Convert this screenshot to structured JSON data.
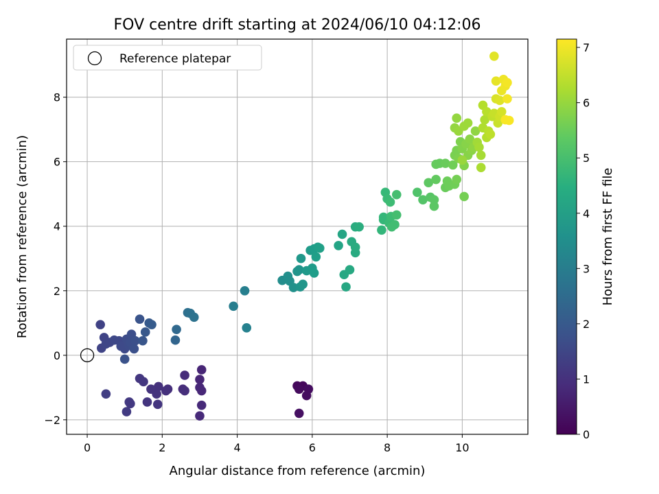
{
  "chart_data": {
    "type": "scatter",
    "title": "FOV centre drift starting at 2024/06/10 04:12:06",
    "xlabel": "Angular distance from reference (arcmin)",
    "ylabel": "Rotation from reference (arcmin)",
    "xlim": [
      -0.55,
      11.75
    ],
    "ylim": [
      -2.45,
      9.8
    ],
    "xticks": [
      0,
      2,
      4,
      6,
      8,
      10
    ],
    "yticks": [
      -2,
      0,
      2,
      4,
      6,
      8
    ],
    "xtick_labels": [
      "0",
      "2",
      "4",
      "6",
      "8",
      "10"
    ],
    "ytick_labels": [
      "−2",
      "0",
      "2",
      "4",
      "6",
      "8"
    ],
    "grid": true,
    "legend": {
      "placement": "top-left",
      "entries": [
        "Reference platepar"
      ]
    },
    "reference_point": {
      "x": 0,
      "y": 0
    },
    "colorbar": {
      "label": "Hours from first FF file",
      "range": [
        0,
        7.15
      ],
      "ticks": [
        0,
        1,
        2,
        3,
        4,
        5,
        6,
        7
      ],
      "tick_labels": [
        "0",
        "1",
        "2",
        "3",
        "4",
        "5",
        "6",
        "7"
      ],
      "colormap": "viridis"
    },
    "points": [
      {
        "x": 5.6,
        "y": -0.95,
        "t": 0.15
      },
      {
        "x": 5.75,
        "y": -0.95,
        "t": 0.15
      },
      {
        "x": 5.65,
        "y": -1.05,
        "t": 0.2
      },
      {
        "x": 5.9,
        "y": -1.05,
        "t": 0.25
      },
      {
        "x": 5.85,
        "y": -1.25,
        "t": 0.25
      },
      {
        "x": 5.65,
        "y": -1.8,
        "t": 0.3
      },
      {
        "x": 3.05,
        "y": -0.45,
        "t": 0.75
      },
      {
        "x": 3.0,
        "y": -0.75,
        "t": 0.75
      },
      {
        "x": 3.0,
        "y": -1.0,
        "t": 0.8
      },
      {
        "x": 3.05,
        "y": -1.1,
        "t": 0.8
      },
      {
        "x": 3.05,
        "y": -1.55,
        "t": 0.85
      },
      {
        "x": 3.0,
        "y": -1.88,
        "t": 0.85
      },
      {
        "x": 2.6,
        "y": -0.62,
        "t": 0.9
      },
      {
        "x": 2.55,
        "y": -1.05,
        "t": 0.9
      },
      {
        "x": 2.6,
        "y": -1.1,
        "t": 0.95
      },
      {
        "x": 2.15,
        "y": -1.05,
        "t": 0.95
      },
      {
        "x": 2.1,
        "y": -1.1,
        "t": 1.0
      },
      {
        "x": 1.9,
        "y": -0.97,
        "t": 1.0
      },
      {
        "x": 1.85,
        "y": -1.2,
        "t": 1.05
      },
      {
        "x": 1.7,
        "y": -1.05,
        "t": 1.05
      },
      {
        "x": 1.6,
        "y": -1.45,
        "t": 1.1
      },
      {
        "x": 1.88,
        "y": -1.52,
        "t": 1.1
      },
      {
        "x": 1.4,
        "y": -0.72,
        "t": 1.15
      },
      {
        "x": 1.5,
        "y": -0.82,
        "t": 1.15
      },
      {
        "x": 1.12,
        "y": -1.45,
        "t": 1.2
      },
      {
        "x": 1.15,
        "y": -1.5,
        "t": 1.2
      },
      {
        "x": 1.05,
        "y": -1.75,
        "t": 1.25
      },
      {
        "x": 0.5,
        "y": -1.2,
        "t": 1.3
      },
      {
        "x": 0.35,
        "y": 0.95,
        "t": 1.4
      },
      {
        "x": 0.45,
        "y": 0.55,
        "t": 1.45
      },
      {
        "x": 0.38,
        "y": 0.22,
        "t": 1.45
      },
      {
        "x": 0.5,
        "y": 0.35,
        "t": 1.5
      },
      {
        "x": 0.6,
        "y": 0.4,
        "t": 1.5
      },
      {
        "x": 0.72,
        "y": 0.47,
        "t": 1.55
      },
      {
        "x": 0.85,
        "y": 0.45,
        "t": 1.55
      },
      {
        "x": 0.9,
        "y": 0.28,
        "t": 1.6
      },
      {
        "x": 1.0,
        "y": 0.2,
        "t": 1.6
      },
      {
        "x": 1.05,
        "y": 0.5,
        "t": 1.65
      },
      {
        "x": 1.1,
        "y": 0.3,
        "t": 1.65
      },
      {
        "x": 1.15,
        "y": 0.4,
        "t": 1.7
      },
      {
        "x": 1.18,
        "y": 0.65,
        "t": 1.7
      },
      {
        "x": 1.25,
        "y": 0.2,
        "t": 1.75
      },
      {
        "x": 1.28,
        "y": 0.45,
        "t": 1.75
      },
      {
        "x": 1.0,
        "y": -0.12,
        "t": 1.8
      },
      {
        "x": 1.4,
        "y": 1.12,
        "t": 1.85
      },
      {
        "x": 1.48,
        "y": 0.45,
        "t": 1.9
      },
      {
        "x": 1.55,
        "y": 0.72,
        "t": 1.95
      },
      {
        "x": 1.65,
        "y": 1.0,
        "t": 2.0
      },
      {
        "x": 1.72,
        "y": 0.95,
        "t": 2.05
      },
      {
        "x": 2.35,
        "y": 0.47,
        "t": 2.3
      },
      {
        "x": 2.38,
        "y": 0.8,
        "t": 2.4
      },
      {
        "x": 2.68,
        "y": 1.32,
        "t": 2.6
      },
      {
        "x": 2.75,
        "y": 1.3,
        "t": 2.65
      },
      {
        "x": 2.85,
        "y": 1.18,
        "t": 2.7
      },
      {
        "x": 3.9,
        "y": 1.52,
        "t": 3.05
      },
      {
        "x": 4.2,
        "y": 2.0,
        "t": 3.1
      },
      {
        "x": 4.25,
        "y": 0.85,
        "t": 3.15
      },
      {
        "x": 5.2,
        "y": 2.32,
        "t": 3.5
      },
      {
        "x": 5.35,
        "y": 2.45,
        "t": 3.55
      },
      {
        "x": 5.4,
        "y": 2.3,
        "t": 3.55
      },
      {
        "x": 5.5,
        "y": 2.1,
        "t": 3.6
      },
      {
        "x": 5.6,
        "y": 2.6,
        "t": 3.65
      },
      {
        "x": 5.65,
        "y": 2.65,
        "t": 3.7
      },
      {
        "x": 5.68,
        "y": 2.12,
        "t": 3.7
      },
      {
        "x": 5.75,
        "y": 2.2,
        "t": 3.75
      },
      {
        "x": 5.7,
        "y": 3.0,
        "t": 3.8
      },
      {
        "x": 5.85,
        "y": 2.62,
        "t": 3.85
      },
      {
        "x": 5.95,
        "y": 3.25,
        "t": 3.9
      },
      {
        "x": 6.0,
        "y": 2.7,
        "t": 3.9
      },
      {
        "x": 6.05,
        "y": 3.3,
        "t": 3.95
      },
      {
        "x": 6.05,
        "y": 2.55,
        "t": 3.95
      },
      {
        "x": 6.1,
        "y": 3.05,
        "t": 4.0
      },
      {
        "x": 6.15,
        "y": 3.35,
        "t": 4.0
      },
      {
        "x": 6.2,
        "y": 3.32,
        "t": 4.05
      },
      {
        "x": 6.7,
        "y": 3.4,
        "t": 4.15
      },
      {
        "x": 6.8,
        "y": 3.75,
        "t": 4.2
      },
      {
        "x": 6.85,
        "y": 2.5,
        "t": 4.25
      },
      {
        "x": 6.9,
        "y": 2.12,
        "t": 4.25
      },
      {
        "x": 7.0,
        "y": 2.65,
        "t": 4.3
      },
      {
        "x": 7.05,
        "y": 3.52,
        "t": 4.35
      },
      {
        "x": 7.15,
        "y": 3.18,
        "t": 4.35
      },
      {
        "x": 7.15,
        "y": 3.35,
        "t": 4.4
      },
      {
        "x": 7.15,
        "y": 3.98,
        "t": 4.4
      },
      {
        "x": 7.25,
        "y": 3.98,
        "t": 4.45
      },
      {
        "x": 7.85,
        "y": 3.88,
        "t": 4.7
      },
      {
        "x": 7.9,
        "y": 4.2,
        "t": 4.75
      },
      {
        "x": 7.9,
        "y": 4.28,
        "t": 4.75
      },
      {
        "x": 7.95,
        "y": 5.05,
        "t": 4.8
      },
      {
        "x": 8.0,
        "y": 4.85,
        "t": 4.85
      },
      {
        "x": 8.05,
        "y": 4.1,
        "t": 4.85
      },
      {
        "x": 8.08,
        "y": 4.75,
        "t": 4.9
      },
      {
        "x": 8.1,
        "y": 4.3,
        "t": 4.9
      },
      {
        "x": 8.12,
        "y": 3.98,
        "t": 4.95
      },
      {
        "x": 8.2,
        "y": 4.05,
        "t": 4.95
      },
      {
        "x": 8.25,
        "y": 4.35,
        "t": 5.0
      },
      {
        "x": 8.25,
        "y": 4.98,
        "t": 5.0
      },
      {
        "x": 8.8,
        "y": 5.05,
        "t": 5.15
      },
      {
        "x": 8.95,
        "y": 4.82,
        "t": 5.2
      },
      {
        "x": 9.15,
        "y": 4.9,
        "t": 5.25
      },
      {
        "x": 9.25,
        "y": 4.62,
        "t": 5.3
      },
      {
        "x": 9.25,
        "y": 4.82,
        "t": 5.3
      },
      {
        "x": 9.1,
        "y": 5.35,
        "t": 5.35
      },
      {
        "x": 9.3,
        "y": 5.45,
        "t": 5.4
      },
      {
        "x": 9.3,
        "y": 5.92,
        "t": 5.45
      },
      {
        "x": 9.4,
        "y": 5.95,
        "t": 5.45
      },
      {
        "x": 9.55,
        "y": 5.2,
        "t": 5.5
      },
      {
        "x": 9.55,
        "y": 5.95,
        "t": 5.5
      },
      {
        "x": 9.6,
        "y": 5.4,
        "t": 5.55
      },
      {
        "x": 9.65,
        "y": 5.25,
        "t": 5.55
      },
      {
        "x": 9.75,
        "y": 5.9,
        "t": 5.6
      },
      {
        "x": 9.8,
        "y": 5.3,
        "t": 5.6
      },
      {
        "x": 9.85,
        "y": 5.45,
        "t": 5.65
      },
      {
        "x": 10.05,
        "y": 4.92,
        "t": 5.65
      },
      {
        "x": 9.8,
        "y": 6.2,
        "t": 5.7
      },
      {
        "x": 9.85,
        "y": 6.35,
        "t": 5.7
      },
      {
        "x": 9.9,
        "y": 6.1,
        "t": 5.75
      },
      {
        "x": 9.95,
        "y": 6.62,
        "t": 5.75
      },
      {
        "x": 10.0,
        "y": 6.4,
        "t": 5.8
      },
      {
        "x": 10.05,
        "y": 5.88,
        "t": 5.8
      },
      {
        "x": 10.1,
        "y": 6.55,
        "t": 5.85
      },
      {
        "x": 10.15,
        "y": 6.2,
        "t": 5.85
      },
      {
        "x": 10.2,
        "y": 6.7,
        "t": 5.9
      },
      {
        "x": 10.25,
        "y": 6.35,
        "t": 5.9
      },
      {
        "x": 10.3,
        "y": 6.45,
        "t": 5.95
      },
      {
        "x": 10.35,
        "y": 6.95,
        "t": 5.95
      },
      {
        "x": 9.8,
        "y": 7.05,
        "t": 6.0
      },
      {
        "x": 9.85,
        "y": 7.35,
        "t": 6.0
      },
      {
        "x": 9.9,
        "y": 6.95,
        "t": 6.05
      },
      {
        "x": 10.0,
        "y": 6.05,
        "t": 6.05
      },
      {
        "x": 10.05,
        "y": 7.1,
        "t": 6.1
      },
      {
        "x": 10.15,
        "y": 7.2,
        "t": 6.1
      },
      {
        "x": 10.4,
        "y": 6.6,
        "t": 6.15
      },
      {
        "x": 10.45,
        "y": 6.45,
        "t": 6.2
      },
      {
        "x": 10.5,
        "y": 6.2,
        "t": 6.2
      },
      {
        "x": 10.5,
        "y": 5.82,
        "t": 6.25
      },
      {
        "x": 10.55,
        "y": 7.05,
        "t": 6.3
      },
      {
        "x": 10.6,
        "y": 7.3,
        "t": 6.3
      },
      {
        "x": 10.55,
        "y": 7.75,
        "t": 6.35
      },
      {
        "x": 10.65,
        "y": 6.75,
        "t": 6.35
      },
      {
        "x": 10.65,
        "y": 7.55,
        "t": 6.4
      },
      {
        "x": 10.7,
        "y": 6.95,
        "t": 6.4
      },
      {
        "x": 10.75,
        "y": 6.85,
        "t": 6.45
      },
      {
        "x": 10.8,
        "y": 7.4,
        "t": 6.5
      },
      {
        "x": 10.85,
        "y": 7.5,
        "t": 6.55
      },
      {
        "x": 10.95,
        "y": 7.2,
        "t": 6.6
      },
      {
        "x": 11.0,
        "y": 7.4,
        "t": 6.65
      },
      {
        "x": 11.05,
        "y": 7.55,
        "t": 6.7
      },
      {
        "x": 10.9,
        "y": 7.95,
        "t": 6.75
      },
      {
        "x": 11.0,
        "y": 7.9,
        "t": 6.8
      },
      {
        "x": 10.85,
        "y": 9.27,
        "t": 6.85
      },
      {
        "x": 10.9,
        "y": 8.5,
        "t": 6.9
      },
      {
        "x": 11.05,
        "y": 8.2,
        "t": 6.95
      },
      {
        "x": 11.1,
        "y": 8.55,
        "t": 7.0
      },
      {
        "x": 11.15,
        "y": 8.35,
        "t": 7.0
      },
      {
        "x": 11.2,
        "y": 8.45,
        "t": 7.05
      },
      {
        "x": 11.2,
        "y": 7.95,
        "t": 7.05
      },
      {
        "x": 11.15,
        "y": 7.3,
        "t": 7.1
      },
      {
        "x": 11.25,
        "y": 7.28,
        "t": 7.1
      }
    ]
  }
}
